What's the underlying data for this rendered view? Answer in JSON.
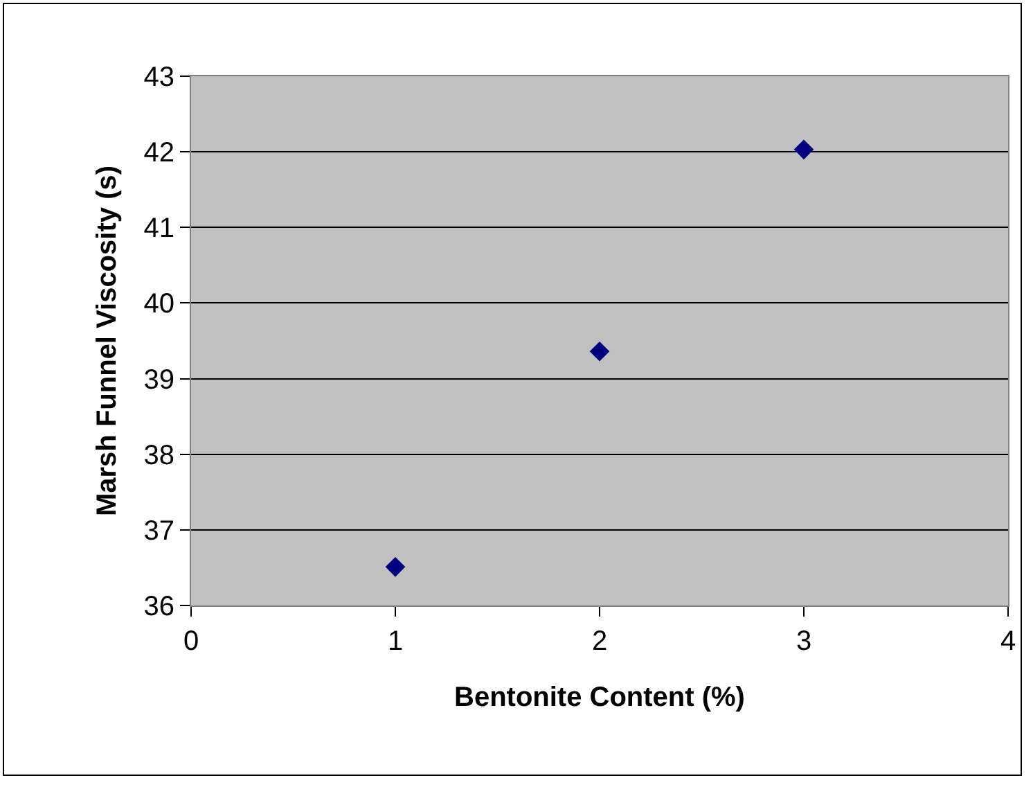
{
  "chart_data": {
    "type": "scatter",
    "xlabel": "Bentonite Content (%)",
    "ylabel": "Marsh Funnel Viscosity (s)",
    "x": [
      1,
      2,
      3
    ],
    "series": [
      {
        "color": "#000080",
        "values": [
          36.51,
          39.36,
          42.03
        ]
      }
    ],
    "xlim": [
      0,
      4
    ],
    "xticks": [
      0,
      1,
      2,
      3,
      4
    ],
    "ylim": [
      36,
      43
    ],
    "yticks": [
      36,
      37,
      38,
      39,
      40,
      41,
      42,
      43
    ],
    "grid": "y",
    "marker": "diamond"
  }
}
